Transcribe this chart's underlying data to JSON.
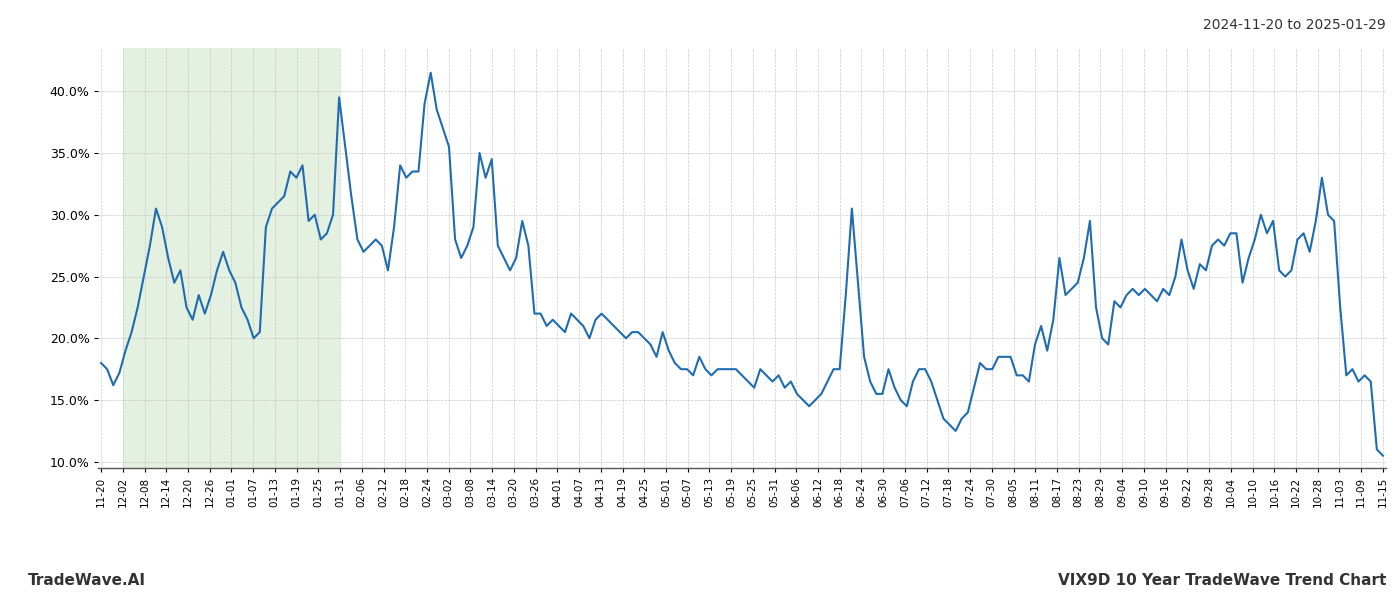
{
  "title_top_right": "2024-11-20 to 2025-01-29",
  "footer_left": "TradeWave.AI",
  "footer_right": "VIX9D 10 Year TradeWave Trend Chart",
  "line_color": "#1f6cb0",
  "line_width": 1.5,
  "shaded_region_color": "#d6e8d0",
  "shaded_region_alpha": 0.65,
  "background_color": "#ffffff",
  "grid_color": "#bbbbbb",
  "ylim": [
    9.5,
    43.5
  ],
  "yticks": [
    10.0,
    15.0,
    20.0,
    25.0,
    30.0,
    35.0,
    40.0
  ],
  "tick_labels_shown": [
    "11-20",
    "12-02",
    "12-08",
    "12-14",
    "12-20",
    "12-26",
    "01-01",
    "01-07",
    "01-13",
    "01-19",
    "01-25",
    "01-31",
    "02-06",
    "02-12",
    "02-18",
    "02-24",
    "03-02",
    "03-08",
    "03-14",
    "03-20",
    "03-26",
    "04-01",
    "04-07",
    "04-13",
    "04-19",
    "04-25",
    "05-01",
    "05-07",
    "05-13",
    "05-19",
    "05-25",
    "05-31",
    "06-06",
    "06-12",
    "06-18",
    "06-24",
    "06-30",
    "07-06",
    "07-12",
    "07-18",
    "07-24",
    "07-30",
    "08-05",
    "08-11",
    "08-17",
    "08-23",
    "08-29",
    "09-04",
    "09-10",
    "09-16",
    "09-22",
    "09-28",
    "10-04",
    "10-10",
    "10-16",
    "10-22",
    "10-28",
    "11-03",
    "11-09",
    "11-15"
  ],
  "shaded_x_start": "12-02",
  "shaded_x_end": "01-31",
  "values": [
    18.0,
    17.5,
    16.2,
    17.2,
    19.0,
    20.5,
    22.5,
    25.0,
    27.5,
    30.5,
    29.0,
    26.5,
    24.5,
    25.5,
    22.5,
    21.5,
    23.5,
    22.0,
    23.5,
    25.5,
    27.0,
    25.5,
    24.5,
    22.5,
    21.5,
    20.0,
    20.5,
    29.0,
    30.5,
    31.0,
    31.5,
    33.5,
    33.0,
    34.0,
    29.5,
    30.0,
    28.0,
    28.5,
    30.0,
    39.5,
    35.5,
    31.5,
    28.0,
    27.0,
    27.5,
    28.0,
    27.5,
    25.5,
    29.0,
    34.0,
    33.0,
    33.5,
    33.5,
    39.0,
    41.5,
    38.5,
    37.0,
    35.5,
    28.0,
    26.5,
    27.5,
    29.0,
    35.0,
    33.0,
    34.5,
    27.5,
    26.5,
    25.5,
    26.5,
    29.5,
    27.5,
    22.0,
    22.0,
    21.0,
    21.5,
    21.0,
    20.5,
    22.0,
    21.5,
    21.0,
    20.0,
    21.5,
    22.0,
    21.5,
    21.0,
    20.5,
    20.0,
    20.5,
    20.5,
    20.0,
    19.5,
    18.5,
    20.5,
    19.0,
    18.0,
    17.5,
    17.5,
    17.0,
    18.5,
    17.5,
    17.0,
    17.5,
    17.5,
    17.5,
    17.5,
    17.0,
    16.5,
    16.0,
    17.5,
    17.0,
    16.5,
    17.0,
    16.0,
    16.5,
    15.5,
    15.0,
    14.5,
    15.0,
    15.5,
    16.5,
    17.5,
    17.5,
    23.5,
    30.5,
    24.5,
    18.5,
    16.5,
    15.5,
    15.5,
    17.5,
    16.0,
    15.0,
    14.5,
    16.5,
    17.5,
    17.5,
    16.5,
    15.0,
    13.5,
    13.0,
    12.5,
    13.5,
    14.0,
    16.0,
    18.0,
    17.5,
    17.5,
    18.5,
    18.5,
    18.5,
    17.0,
    17.0,
    16.5,
    19.5,
    21.0,
    19.0,
    21.5,
    26.5,
    23.5,
    24.0,
    24.5,
    26.5,
    29.5,
    22.5,
    20.0,
    19.5,
    23.0,
    22.5,
    23.5,
    24.0,
    23.5,
    24.0,
    23.5,
    23.0,
    24.0,
    23.5,
    25.0,
    28.0,
    25.5,
    24.0,
    26.0,
    25.5,
    27.5,
    28.0,
    27.5,
    28.5,
    28.5,
    24.5,
    26.5,
    28.0,
    30.0,
    28.5,
    29.5,
    25.5,
    25.0,
    25.5,
    28.0,
    28.5,
    27.0,
    29.5,
    33.0,
    30.0,
    29.5,
    22.5,
    17.0,
    17.5,
    16.5,
    17.0,
    16.5,
    11.0,
    10.5
  ]
}
